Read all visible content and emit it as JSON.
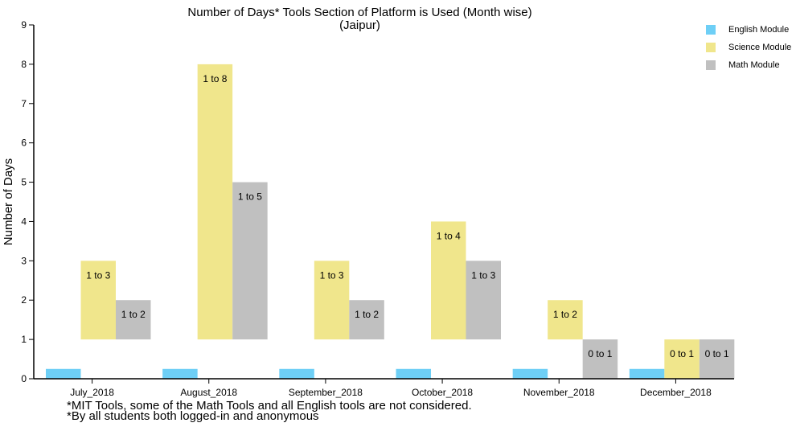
{
  "chart_data": {
    "type": "bar",
    "title": "Number of Days* Tools Section of Platform is Used (Month wise)",
    "subtitle": "(Jaipur)",
    "ylabel": "Number of Days",
    "xlabel": "",
    "ylim": [
      0,
      9
    ],
    "yticks": [
      0,
      1,
      2,
      3,
      4,
      5,
      6,
      7,
      8,
      9
    ],
    "categories": [
      "July_2018",
      "August_2018",
      "September_2018",
      "October_2018",
      "November_2018",
      "December_2018"
    ],
    "series": [
      {
        "name": "English Module",
        "color": "#6ecff6",
        "values": [
          [
            0,
            0.25
          ],
          [
            0,
            0.25
          ],
          [
            0,
            0.25
          ],
          [
            0,
            0.25
          ],
          [
            0,
            0.25
          ],
          [
            0,
            0.25
          ]
        ],
        "labels": [
          "",
          "",
          "",
          "",
          "",
          ""
        ]
      },
      {
        "name": "Science Module",
        "color": "#f0e68c",
        "values": [
          [
            1,
            3
          ],
          [
            1,
            8
          ],
          [
            1,
            3
          ],
          [
            1,
            4
          ],
          [
            1,
            2
          ],
          [
            0,
            1
          ]
        ],
        "labels": [
          "1 to 3",
          "1 to 8",
          "1 to 3",
          "1 to 4",
          "1 to 2",
          "0 to 1"
        ]
      },
      {
        "name": "Math Module",
        "color": "#c0c0c0",
        "values": [
          [
            1,
            2
          ],
          [
            1,
            5
          ],
          [
            1,
            2
          ],
          [
            1,
            3
          ],
          [
            0,
            1
          ],
          [
            0,
            1
          ]
        ],
        "labels": [
          "1 to 2",
          "1 to 5",
          "1 to 2",
          "1 to 3",
          "0 to 1",
          "0 to 1"
        ]
      }
    ],
    "legend": "top-right",
    "grid": false,
    "footnotes": [
      "*MIT Tools, some of the Math Tools and all English tools are not considered.",
      "*By all students both logged-in and anonymous"
    ]
  }
}
